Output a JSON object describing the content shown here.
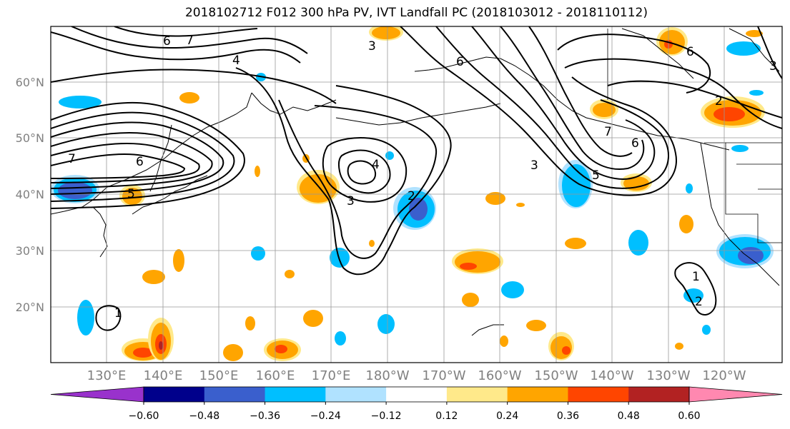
{
  "title": "2018102712 F012 300 hPa PV, IVT Landfall PC (2018103012 - 2018110112)",
  "lat_labels": [
    "60°N",
    "50°N",
    "40°N",
    "30°N",
    "20°N"
  ],
  "lon_labels": [
    "130°E",
    "140°E",
    "150°E",
    "160°E",
    "170°E",
    "180°W",
    "170°W",
    "160°W",
    "150°W",
    "140°W",
    "130°W",
    "120°W"
  ],
  "colorbar": {
    "colors": [
      "#9932cc",
      "#00008b",
      "#3a5fcd",
      "#00bfff",
      "#b0e2ff",
      "#ffffff",
      "#ffe98a",
      "#ffa500",
      "#ff4500",
      "#b22222",
      "#ff88b0"
    ],
    "tick_labels": [
      "−0.60",
      "−0.48",
      "−0.36",
      "−0.24",
      "−0.12",
      "0.12",
      "0.24",
      "0.36",
      "0.48",
      "0.60"
    ]
  },
  "contour_labels": [
    "7",
    "6",
    "5",
    "4",
    "3",
    "2",
    "1"
  ]
}
